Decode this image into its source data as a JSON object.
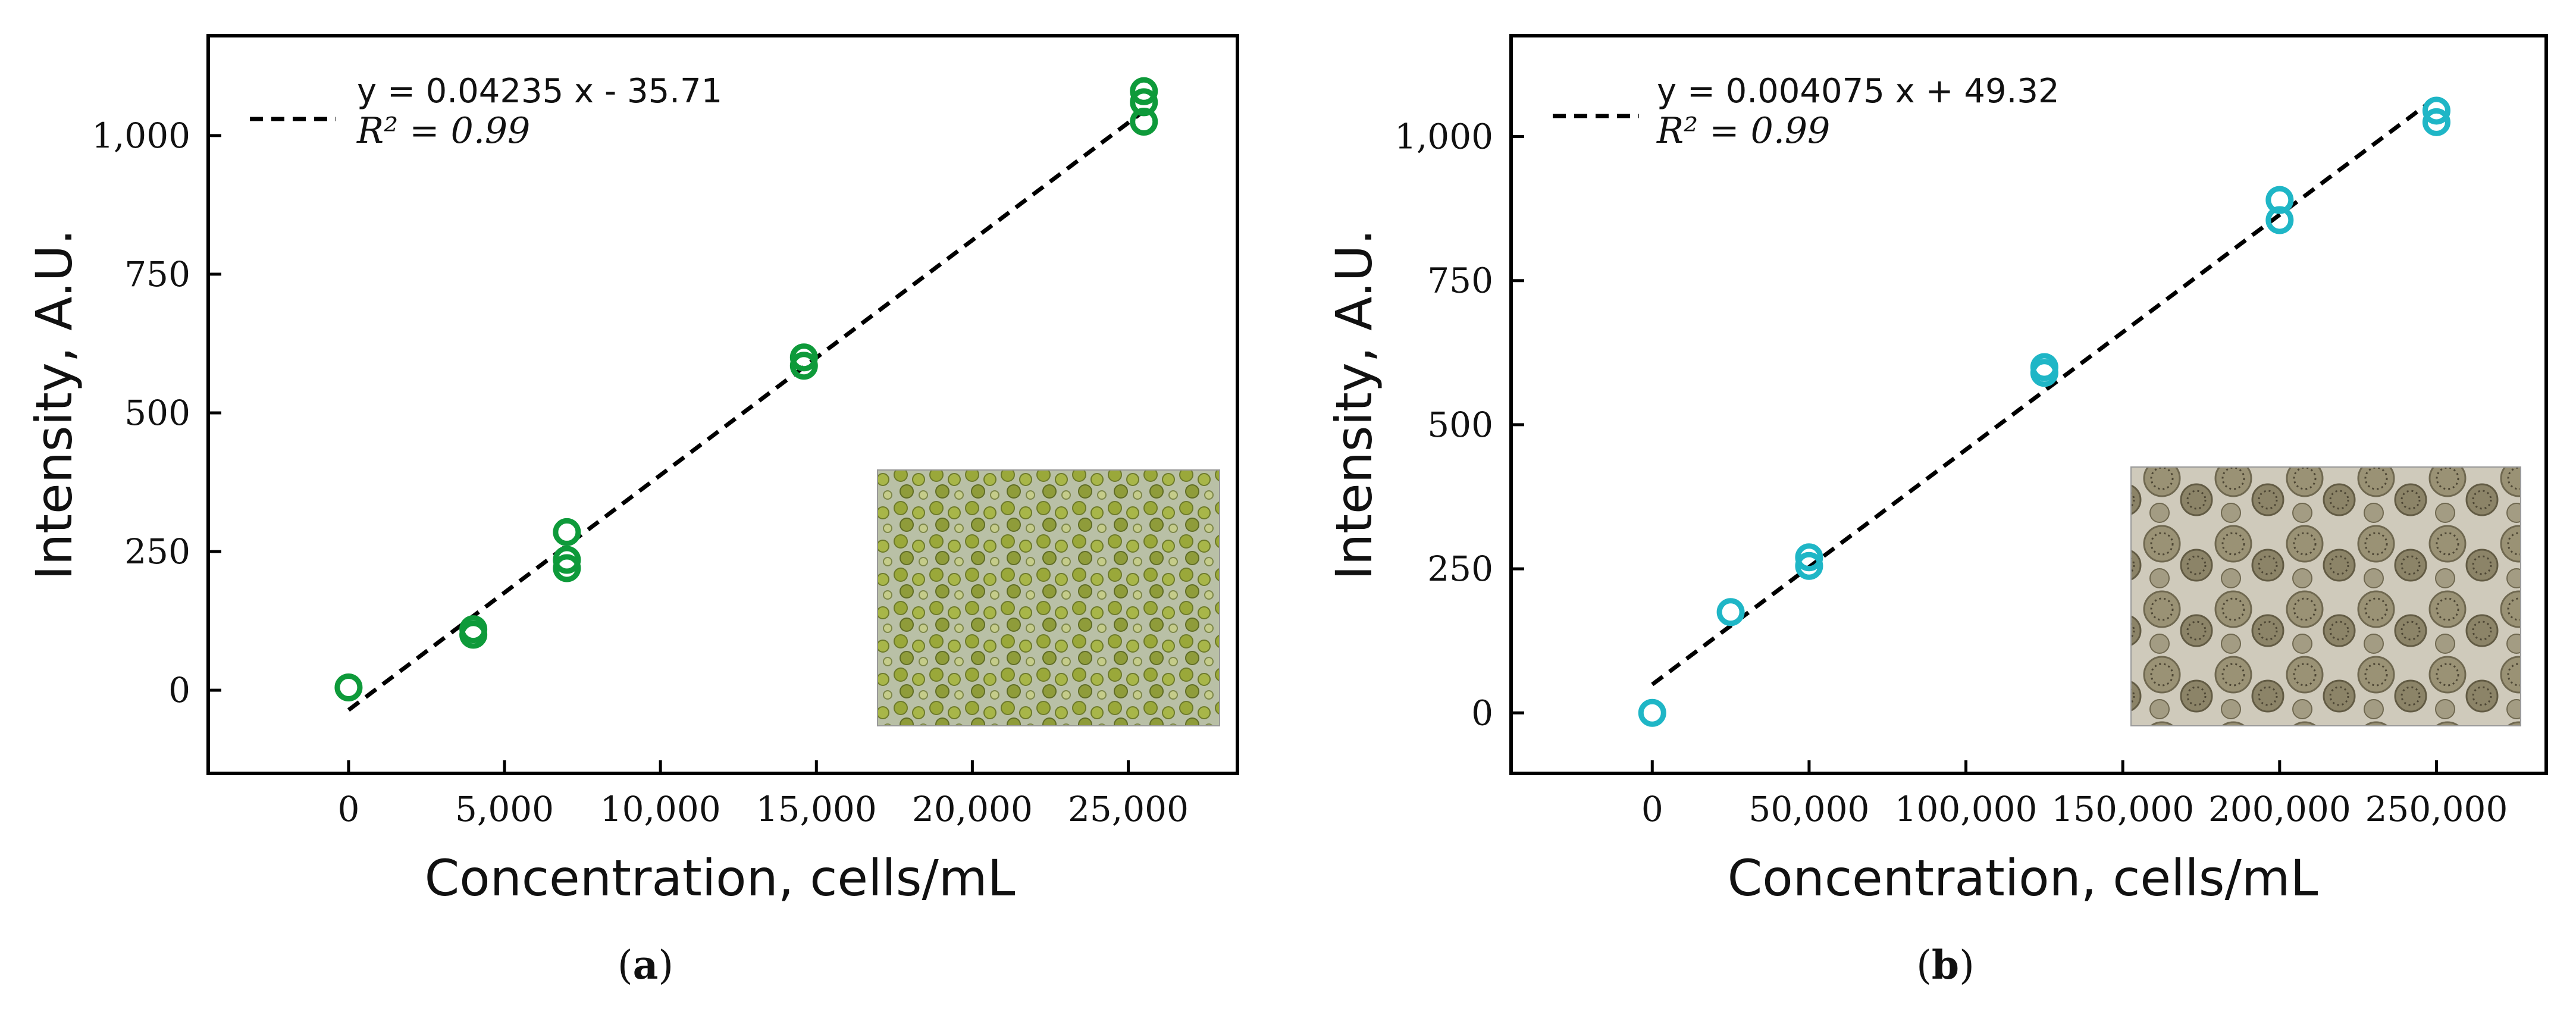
{
  "chart_data": [
    {
      "type": "scatter",
      "panel_label": "a",
      "xlabel": "Concentration, cells/mL",
      "ylabel": "Intensity, A.U.",
      "xlim": [
        -4500,
        28500
      ],
      "ylim": [
        -150,
        1180
      ],
      "xticks": [
        0,
        5000,
        10000,
        15000,
        20000,
        25000
      ],
      "xtick_labels": [
        "0",
        "5,000",
        "10,000",
        "15,000",
        "20,000",
        "25,000"
      ],
      "yticks": [
        0,
        250,
        500,
        750,
        1000
      ],
      "ytick_labels": [
        "0",
        "250",
        "500",
        "750",
        "1,000"
      ],
      "marker_color": "#0e9a3a",
      "points": [
        {
          "x": 0,
          "y": 5
        },
        {
          "x": 4000,
          "y": 100
        },
        {
          "x": 4000,
          "y": 110
        },
        {
          "x": 7000,
          "y": 220
        },
        {
          "x": 7000,
          "y": 235
        },
        {
          "x": 7000,
          "y": 285
        },
        {
          "x": 14600,
          "y": 585
        },
        {
          "x": 14600,
          "y": 600
        },
        {
          "x": 25500,
          "y": 1025
        },
        {
          "x": 25500,
          "y": 1060
        },
        {
          "x": 25500,
          "y": 1080
        }
      ],
      "fit": {
        "slope": 0.04235,
        "intercept": -35.71,
        "x_range": [
          0,
          25500
        ],
        "style": "dashed",
        "color": "#000000"
      },
      "legend": {
        "equation": "y = 0.04235 x - 35.71",
        "r2": "R² = 0.99",
        "placement": "top-left"
      },
      "inset": {
        "description": "green microalgae micrograph",
        "base_color": "#b9c0a6"
      }
    },
    {
      "type": "scatter",
      "panel_label": "b",
      "xlabel": "Concentration, cells/mL",
      "ylabel": "Intensity, A.U.",
      "xlim": [
        -45000,
        285000
      ],
      "ylim": [
        -105,
        1175
      ],
      "xticks": [
        0,
        50000,
        100000,
        150000,
        200000,
        250000
      ],
      "xtick_labels": [
        "0",
        "50,000",
        "100,000",
        "150,000",
        "200,000",
        "250,000"
      ],
      "yticks": [
        0,
        250,
        500,
        750,
        1000
      ],
      "ytick_labels": [
        "0",
        "250",
        "500",
        "750",
        "1,000"
      ],
      "marker_color": "#1fb6c6",
      "points": [
        {
          "x": 0,
          "y": 0
        },
        {
          "x": 25000,
          "y": 175
        },
        {
          "x": 50000,
          "y": 255
        },
        {
          "x": 50000,
          "y": 270
        },
        {
          "x": 125000,
          "y": 590
        },
        {
          "x": 125000,
          "y": 600
        },
        {
          "x": 200000,
          "y": 855
        },
        {
          "x": 200000,
          "y": 890
        },
        {
          "x": 250000,
          "y": 1025
        },
        {
          "x": 250000,
          "y": 1045
        }
      ],
      "fit": {
        "slope": 0.004075,
        "intercept": 49.32,
        "x_range": [
          0,
          250000
        ],
        "style": "dashed",
        "color": "#000000"
      },
      "legend": {
        "equation": "y = 0.004075 x + 49.32",
        "r2": "R² = 0.99",
        "placement": "top-left"
      },
      "inset": {
        "description": "brown pollen-like cells micrograph",
        "base_color": "#b8b2a2"
      }
    }
  ],
  "captions": {
    "a": {
      "open": "(",
      "letter": "a",
      "close": ")"
    },
    "b": {
      "open": "(",
      "letter": "b",
      "close": ")"
    }
  }
}
